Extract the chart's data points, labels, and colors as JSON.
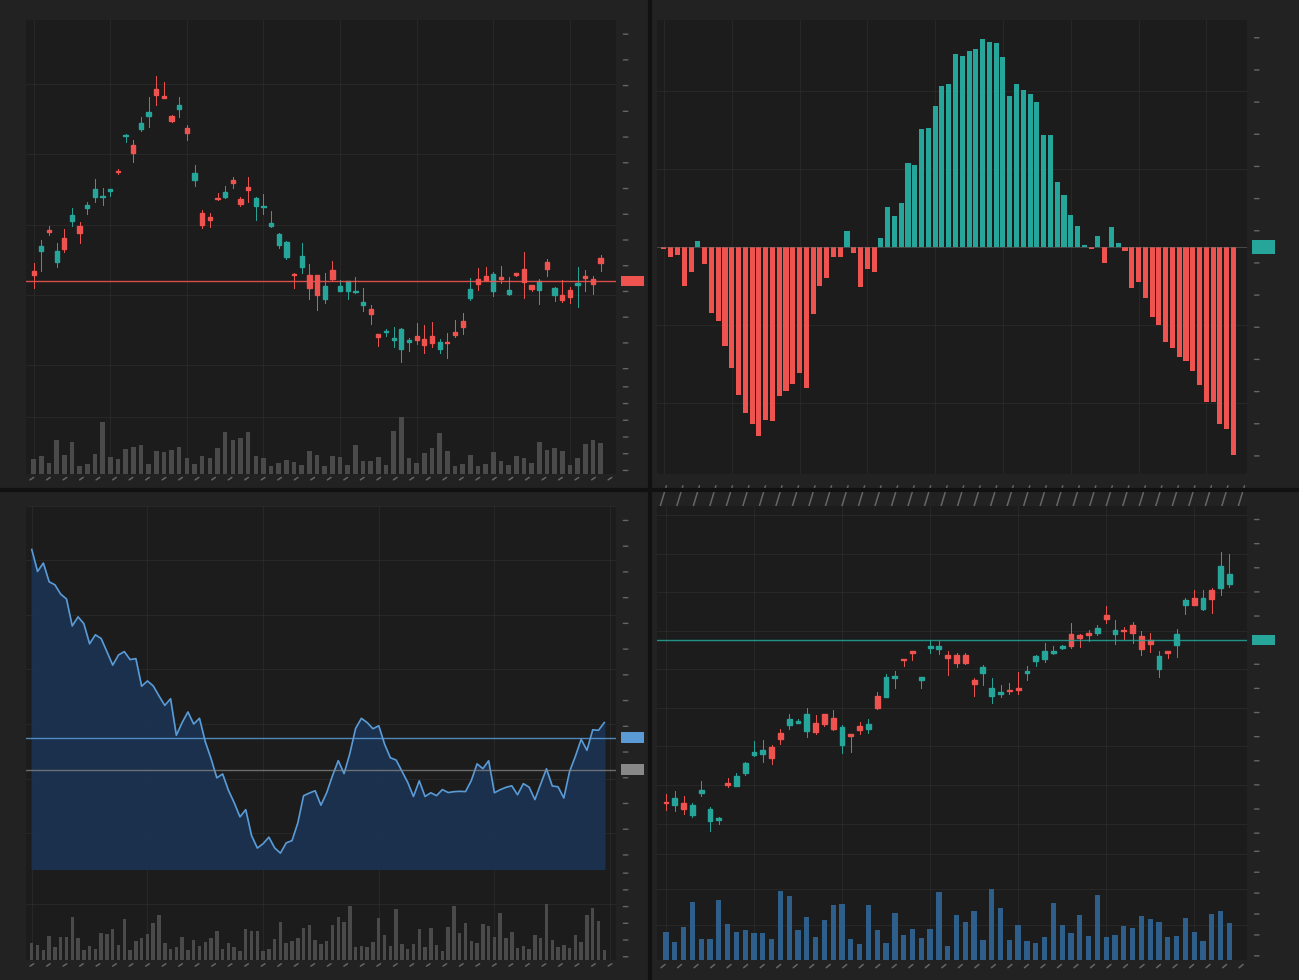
{
  "bg_color": "#222222",
  "panel_bg": "#1c1c1c",
  "grid_color": "#2d2d2d",
  "green_candle": "#26a69a",
  "red_candle": "#ef5350",
  "gray_vol": "#4a4a4a",
  "blue_line": "#5b9bd5",
  "blue_area": "#1a3352",
  "blue_vol": "#2d5f8a",
  "separator_color": "#111111",
  "tick_color": "#666666"
}
